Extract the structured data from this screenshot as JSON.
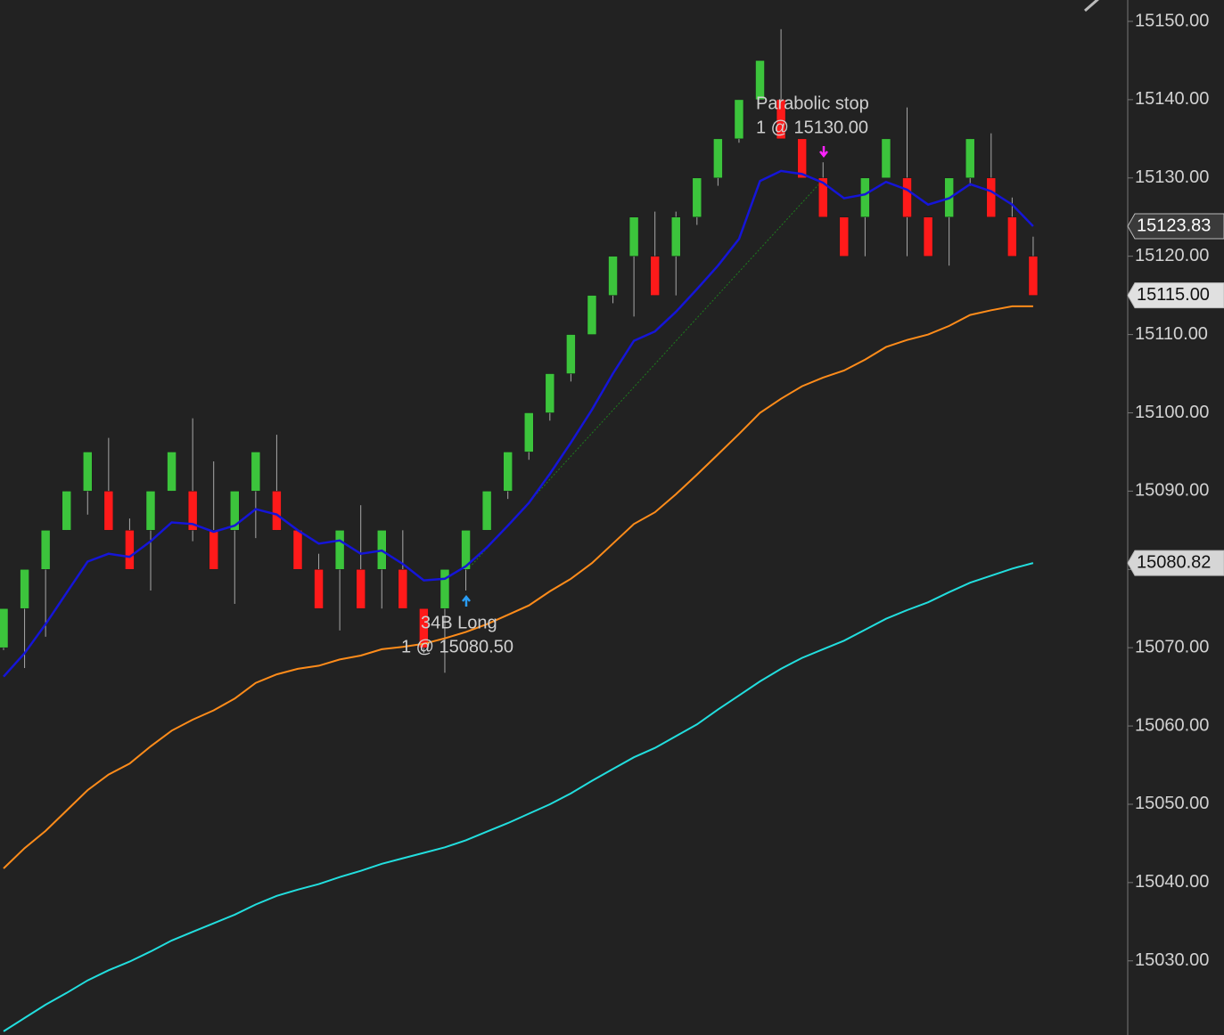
{
  "chart_data": {
    "type": "candlestick",
    "background": "#222222",
    "ylim": [
      15020.53,
      15152.73
    ],
    "yticks": [
      {
        "value": 15030,
        "label": "15030.00"
      },
      {
        "value": 15040,
        "label": "15040.00"
      },
      {
        "value": 15050,
        "label": "15050.00"
      },
      {
        "value": 15060,
        "label": "15060.00"
      },
      {
        "value": 15070,
        "label": "15070.00"
      },
      {
        "value": 15080,
        "label": "15080.00"
      },
      {
        "value": 15090,
        "label": "15090.00"
      },
      {
        "value": 15100,
        "label": "15100.00"
      },
      {
        "value": 15110,
        "label": "15110.00"
      },
      {
        "value": 15120,
        "label": "15120.00"
      },
      {
        "value": 15130,
        "label": "15130.00"
      },
      {
        "value": 15140,
        "label": "15140.00"
      },
      {
        "value": 15150,
        "label": "15150.00"
      }
    ],
    "up_color": "#3cc43c",
    "down_color": "#ff1a1a",
    "open": [
      15070,
      15075,
      15080,
      15085,
      15090,
      15090,
      15085,
      15085,
      15090,
      15090,
      15085,
      15085,
      15090,
      15090,
      15085,
      15080,
      15080,
      15080,
      15080,
      15080,
      15075,
      15075,
      15080,
      15085,
      15090,
      15095,
      15100,
      15105,
      15110,
      15115,
      15120,
      15120,
      15120,
      15125,
      15130,
      15135,
      15140,
      15140,
      15135,
      15130,
      15125,
      15125,
      15130,
      15130,
      15125,
      15125,
      15130,
      15130,
      15125,
      15120
    ],
    "high": [
      15075,
      15080,
      15085,
      15090,
      15095,
      15096.8,
      15086.5,
      15090,
      15095,
      15099.3,
      15093.8,
      15090,
      15095,
      15097.2,
      15085,
      15082,
      15085,
      15088.2,
      15085,
      15085,
      15075,
      15080,
      15085,
      15090,
      15095,
      15100,
      15105,
      15110,
      15115,
      15120,
      15125,
      15125.7,
      15125.7,
      15130,
      15135,
      15140,
      15145,
      15149,
      15135,
      15132,
      15125,
      15130,
      15135,
      15139,
      15125,
      15130,
      15135,
      15135.7,
      15127.5,
      15122.5
    ],
    "low": [
      15069.7,
      15067.4,
      15071.4,
      15085,
      15087,
      15085,
      15080,
      15077.3,
      15090,
      15083.6,
      15080,
      15075.6,
      15084,
      15085,
      15080,
      15075,
      15072.2,
      15075,
      15075,
      15075,
      15069.3,
      15066.8,
      15077.3,
      15085,
      15089,
      15094,
      15099,
      15104,
      15110,
      15114,
      15112.3,
      15115,
      15115,
      15124,
      15129,
      15134.5,
      15140,
      15135,
      15130,
      15125,
      15120,
      15120,
      15130,
      15120,
      15120,
      15118.8,
      15129,
      15125,
      15120,
      15115
    ],
    "close": [
      15075,
      15080,
      15085,
      15090,
      15095,
      15085,
      15080,
      15090,
      15095,
      15085,
      15080,
      15090,
      15095,
      15085,
      15080,
      15075,
      15085,
      15075,
      15085,
      15075,
      15070,
      15080,
      15085,
      15090,
      15095,
      15100,
      15105,
      15110,
      15115,
      15120,
      15125,
      15115,
      15125,
      15130,
      15135,
      15140,
      15145,
      15135,
      15130,
      15125,
      15120,
      15130,
      15135,
      15125,
      15120,
      15130,
      15135,
      15125,
      15120,
      15115
    ],
    "series": [
      {
        "color": "#1515d8",
        "values": [
          15066.3,
          15069.3,
          15073,
          15077,
          15081,
          15082,
          15081.6,
          15083.6,
          15086,
          15085.8,
          15084.8,
          15085.6,
          15087.7,
          15087,
          15085,
          15083.3,
          15083.7,
          15082,
          15082.4,
          15080.7,
          15078.6,
          15078.8,
          15080.4,
          15082.8,
          15085.6,
          15088.5,
          15092.2,
          15096.2,
          15100.4,
          15105,
          15109.2,
          15110.4,
          15112.9,
          15115.8,
          15118.8,
          15122.2,
          15129.6,
          15130.9,
          15130.5,
          15129.4,
          15127.4,
          15127.9,
          15129.5,
          15128.5,
          15126.6,
          15127.4,
          15129.2,
          15128.3,
          15126.6,
          15123.83
        ]
      },
      {
        "color": "#ff8c1a",
        "values": [
          15041.8,
          15044.4,
          15046.6,
          15049.2,
          15051.8,
          15053.8,
          15055.2,
          15057.4,
          15059.4,
          15060.8,
          15062,
          15063.5,
          15065.5,
          15066.6,
          15067.3,
          15067.7,
          15068.5,
          15069,
          15069.8,
          15070.1,
          15070.5,
          15071.2,
          15072,
          15073,
          15074.2,
          15075.4,
          15077.2,
          15078.8,
          15080.8,
          15083.3,
          15085.8,
          15087.3,
          15089.6,
          15092.1,
          15094.7,
          15097.3,
          15100,
          15101.8,
          15103.4,
          15104.5,
          15105.4,
          15106.8,
          15108.4,
          15109.3,
          15110,
          15111.1,
          15112.5,
          15113.1,
          15113.6,
          15113.6
        ]
      },
      {
        "color": "#22dede",
        "values": [
          15021,
          15022.7,
          15024.4,
          15025.9,
          15027.5,
          15028.8,
          15029.9,
          15031.2,
          15032.6,
          15033.7,
          15034.8,
          15035.9,
          15037.2,
          15038.3,
          15039.1,
          15039.8,
          15040.7,
          15041.5,
          15042.4,
          15043.1,
          15043.8,
          15044.5,
          15045.4,
          15046.5,
          15047.6,
          15048.8,
          15050,
          15051.4,
          15053,
          15054.5,
          15056,
          15057.2,
          15058.7,
          15060.2,
          15062.1,
          15063.9,
          15065.7,
          15067.3,
          15068.7,
          15069.8,
          15070.9,
          15072.3,
          15073.7,
          15074.8,
          15075.8,
          15077.1,
          15078.3,
          15079.2,
          15080.1,
          15080.82
        ]
      }
    ],
    "price_tags": [
      {
        "value": 15123.83,
        "label": "15123.83",
        "color": "#3a3a3a",
        "text_color": "#ffffff"
      },
      {
        "value": 15115,
        "label": "15115.00",
        "color": "#e0e0e0",
        "text_color": "#111111"
      },
      {
        "value": 15080.82,
        "label": "15080.82",
        "color": "#d6d6d6",
        "text_color": "#111111"
      }
    ],
    "annotations": [
      {
        "lines": [
          "Parabolic stop",
          "1 @ 15130.00"
        ]
      },
      {
        "lines": [
          "34B Long",
          "1 @ 15080.50"
        ]
      }
    ]
  }
}
